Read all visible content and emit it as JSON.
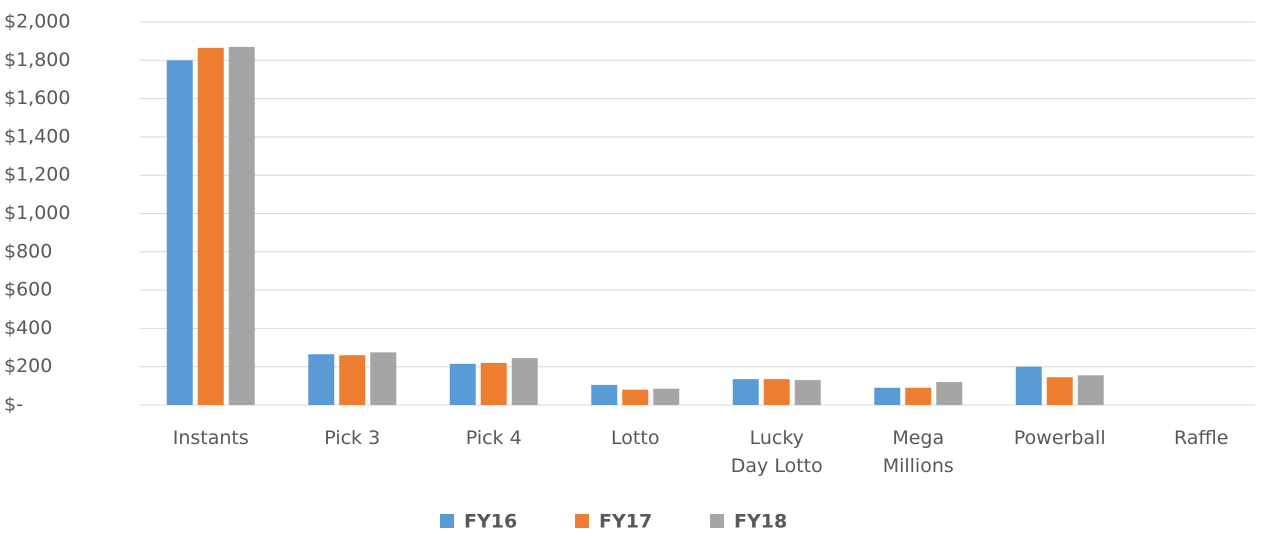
{
  "chart_data": {
    "type": "bar",
    "categories": [
      "Instants",
      "Pick 3",
      "Pick 4",
      "Lotto",
      "Lucky\nDay Lotto",
      "Mega\nMillions",
      "Powerball",
      "Raffle"
    ],
    "series": [
      {
        "name": "FY16",
        "color": "#5b9bd5",
        "values": [
          1800,
          265,
          215,
          105,
          135,
          90,
          200,
          0
        ]
      },
      {
        "name": "FY17",
        "color": "#ed7d31",
        "values": [
          1865,
          260,
          220,
          80,
          135,
          90,
          145,
          0
        ]
      },
      {
        "name": "FY18",
        "color": "#a5a5a5",
        "values": [
          1870,
          275,
          245,
          85,
          130,
          120,
          155,
          0
        ]
      }
    ],
    "ylim": [
      0,
      2000
    ],
    "yticks": [
      {
        "value": 0,
        "label": "$-"
      },
      {
        "value": 200,
        "label": "$200"
      },
      {
        "value": 400,
        "label": "$400"
      },
      {
        "value": 600,
        "label": "$600"
      },
      {
        "value": 800,
        "label": "$800"
      },
      {
        "value": 1000,
        "label": "$1,000"
      },
      {
        "value": 1200,
        "label": "$1,200"
      },
      {
        "value": 1400,
        "label": "$1,400"
      },
      {
        "value": 1600,
        "label": "$1,600"
      },
      {
        "value": 1800,
        "label": "$1,800"
      },
      {
        "value": 2000,
        "label": "$2,000"
      }
    ],
    "grid": true,
    "legend": "bottom"
  }
}
